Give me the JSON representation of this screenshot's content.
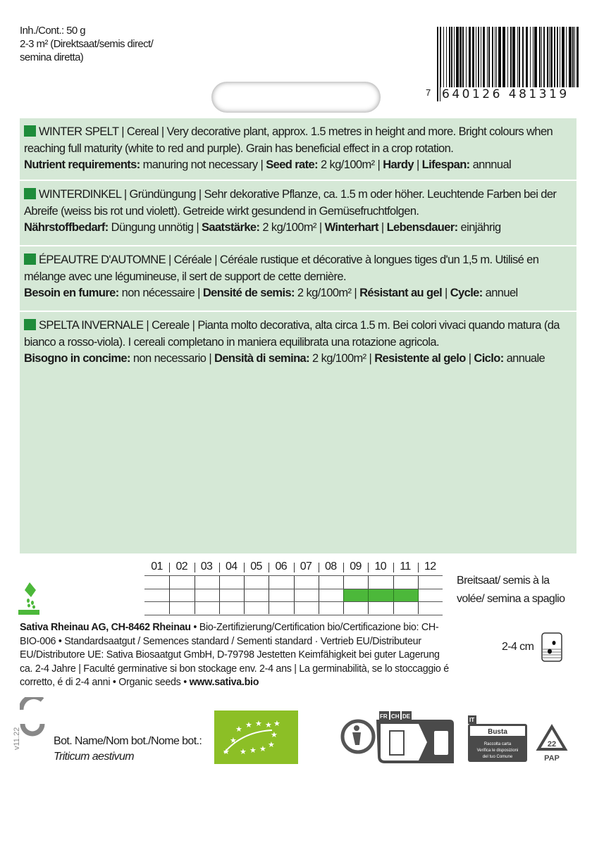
{
  "top": {
    "content": "Inh./Cont.:  50 g",
    "area_line1": "2-3 m² (Direktsaat/semis direct/",
    "area_line2": "semina diretta)"
  },
  "barcode": {
    "lead": "7",
    "digits": "640126 481319"
  },
  "sections": [
    {
      "title": "WINTER SPELT",
      "desc": " | Cereal | Very decorative plant, approx. 1.5 metres in height and more. Bright colours when reaching full maturity (white to red and purple). Grain has beneficial effect in a crop rotation.",
      "l1": "Nutrient requirements:",
      "v1": " manuring not necessary | ",
      "l2": "Seed rate:",
      "v2": " 2 kg/100m² | ",
      "l3": "Hardy",
      "v3": "  | ",
      "l4": "Lifespan:",
      "v4": " annnual"
    },
    {
      "title": "WINTERDINKEL",
      "desc": " | Gründüngung | Sehr dekorative Pflanze, ca. 1.5 m oder höher. Leuchtende Farben bei der Abreife (weiss bis rot und violett). Getreide wirkt gesundend in Gemüsefruchtfolgen.",
      "l1": "Nährstoffbedarf:",
      "v1": " Düngung unnötig | ",
      "l2": "Saatstärke:",
      "v2": " 2 kg/100m² | ",
      "l3": "Winterhart",
      "v3": "  | ",
      "l4": "Lebensdauer:",
      "v4": " einjährig"
    },
    {
      "title": "ÉPEAUTRE D'AUTOMNE",
      "desc": " | Céréale | Céréale rustique et décorative à longues tiges d'un 1,5 m. Utilisé en mélange avec une légumineuse, il sert de support de cette dernière.",
      "l1": "Besoin en fumure:",
      "v1": " non nécessaire | ",
      "l2": "Densité de semis:",
      "v2": " 2 kg/100m² | ",
      "l3": "Résistant au gel",
      "v3": "  | ",
      "l4": "Cycle:",
      "v4": " annuel"
    },
    {
      "title": "SPELTA INVERNALE",
      "desc": " | Cereale | Pianta molto decorativa, alta circa 1.5 m. Bei colori vivaci quando matura (da bianco a rosso-viola). I cereali completano in maniera equilibrata una rotazione agricola.",
      "l1": "Bisogno in concime:",
      "v1": " non necessario | ",
      "l2": "Densità di semina:",
      "v2": " 2 kg/100m² | ",
      "l3": "Resistente al gelo",
      "v3": "  | ",
      "l4": "Ciclo:",
      "v4": " annuale"
    }
  ],
  "calendar": {
    "months": [
      "01",
      "02",
      "03",
      "04",
      "05",
      "06",
      "07",
      "08",
      "09",
      "10",
      "11",
      "12"
    ],
    "sowing_months": [
      "09",
      "10",
      "11"
    ],
    "sowing_color": "#4cb83a"
  },
  "sowing": {
    "method": "Breitsaat/ semis à la volée/ semina a spaglio",
    "depth": "2-4 cm"
  },
  "footer": {
    "company": "Sativa Rheinau AG, CH-8462 Rheinau",
    "text": " • Bio-Zertifizierung/Certification bio/Certificazione bio: CH-BIO-006 • Standardsaatgut / Semences standard / Sementi standard · Vertrieb EU/Distributeur EU/Distributore UE: Sativa Biosaatgut GmbH, D-79798 Jestetten Keimfähigkeit bei guter Lagerung ca. 2-4 Jahre | Faculté germinative si bon stockage env. 2-4 ans | La germinabilità, se lo stoccaggio é corretto, é di 2-4 anni • Organic seeds • ",
    "url": "www.sativa.bio"
  },
  "botanical": {
    "label": "Bot. Name/Nom bot./Nome bot.:",
    "name": "Triticum aestivum"
  },
  "version": "v11.22",
  "recycling": {
    "countries": [
      "FR",
      "CH",
      "DE"
    ],
    "it_label": "IT",
    "busta": "Busta",
    "busta_note": "Raccolta carta Verifica le disposizioni del tuo Comune",
    "code": "22",
    "pap": "PAP"
  }
}
